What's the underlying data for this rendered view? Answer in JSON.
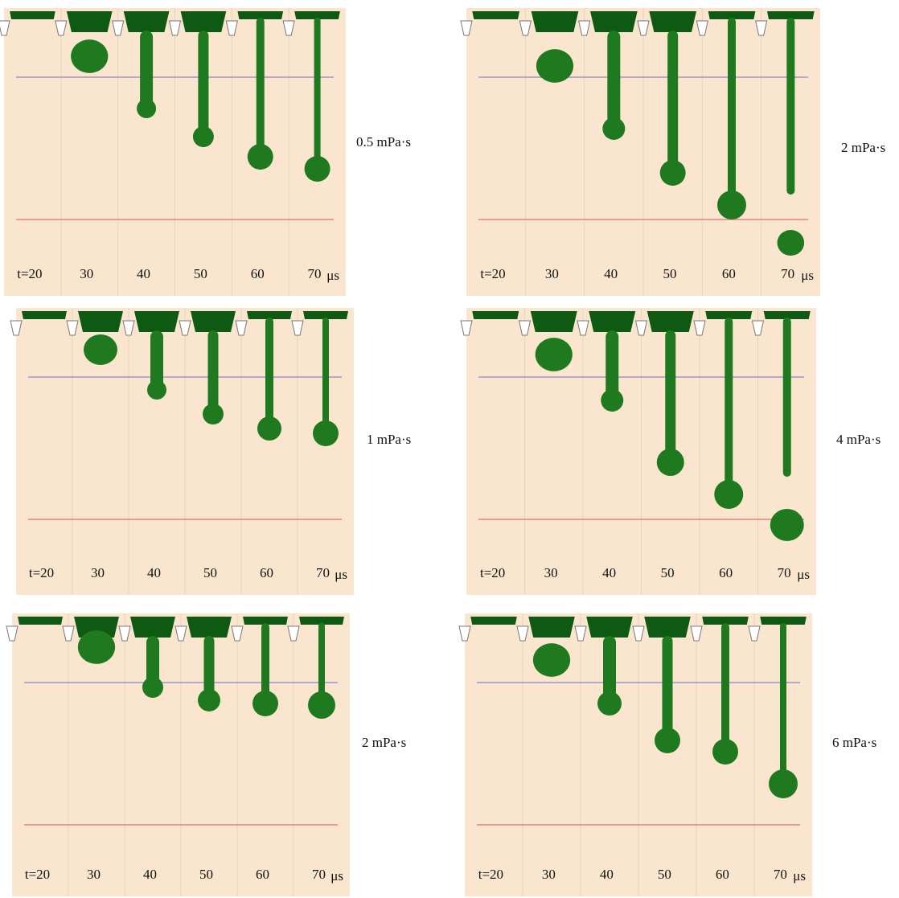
{
  "panels": [
    {
      "viscosity": "0.5 mPa·s",
      "time_labels": [
        "t=20",
        "30",
        "40",
        "50",
        "60",
        "70"
      ],
      "unit": "μs"
    },
    {
      "viscosity": "2 mPa·s",
      "time_labels": [
        "t=20",
        "30",
        "40",
        "50",
        "60",
        "70"
      ],
      "unit": "μs"
    },
    {
      "viscosity": "1 mPa·s",
      "time_labels": [
        "t=20",
        "30",
        "40",
        "50",
        "60",
        "70"
      ],
      "unit": "μs"
    },
    {
      "viscosity": "4 mPa·s",
      "time_labels": [
        "t=20",
        "30",
        "40",
        "50",
        "60",
        "70"
      ],
      "unit": "μs"
    },
    {
      "viscosity": "2 mPa·s",
      "time_labels": [
        "t=20",
        "30",
        "40",
        "50",
        "60",
        "70"
      ],
      "unit": "μs"
    },
    {
      "viscosity": "6 mPa·s",
      "time_labels": [
        "t=20",
        "30",
        "40",
        "50",
        "60",
        "70"
      ],
      "unit": "μs"
    }
  ]
}
